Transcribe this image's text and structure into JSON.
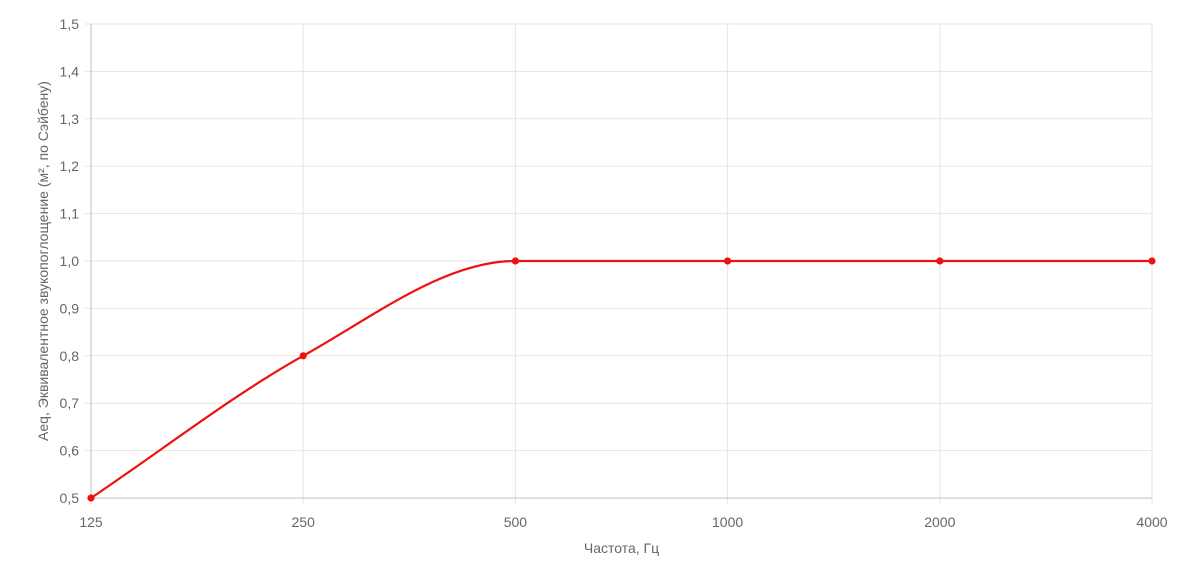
{
  "colors": {
    "series": "#ee1111",
    "grid": "#e5e5e5",
    "axis": "#bdbdbd",
    "text": "#666666"
  },
  "chart_data": {
    "type": "line",
    "title": "",
    "xlabel": "Частота, Гц",
    "ylabel": "Aeq, Эквивалентное звукопоглощение (м², по Сэйбену)",
    "categories": [
      "125",
      "250",
      "500",
      "1000",
      "2000",
      "4000"
    ],
    "series": [
      {
        "values": [
          0.5,
          0.8,
          1.0,
          1.0,
          1.0,
          1.0
        ]
      }
    ],
    "ylim": [
      0.5,
      1.5
    ],
    "yticks": [
      "0,5",
      "0,6",
      "0,7",
      "0,8",
      "0,9",
      "1,0",
      "1,1",
      "1,2",
      "1,3",
      "1,4",
      "1,5"
    ],
    "grid": true,
    "legend": "none",
    "smooth": true
  }
}
